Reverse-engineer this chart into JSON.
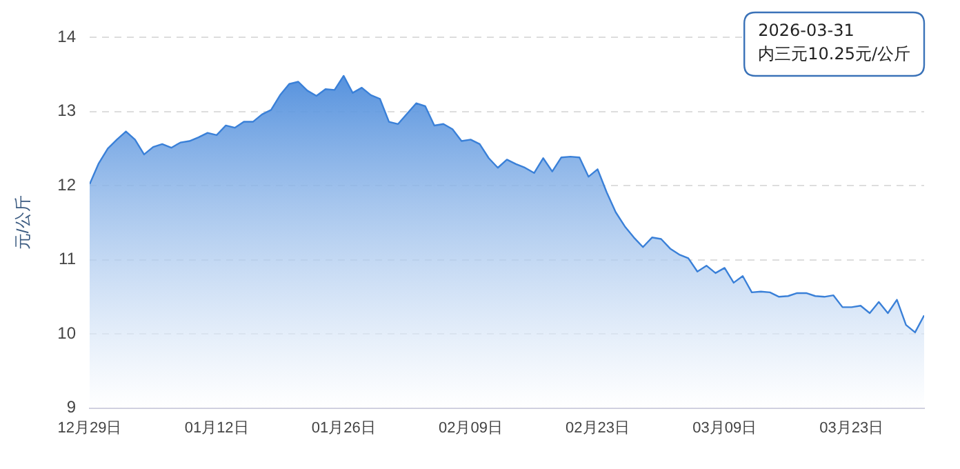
{
  "chart_data": {
    "type": "area",
    "ylabel": "元/公斤",
    "x": [
      "2025-12-29",
      "2025-12-30",
      "2025-12-31",
      "2026-01-01",
      "2026-01-02",
      "2026-01-03",
      "2026-01-04",
      "2026-01-05",
      "2026-01-06",
      "2026-01-07",
      "2026-01-08",
      "2026-01-09",
      "2026-01-10",
      "2026-01-11",
      "2026-01-12",
      "2026-01-13",
      "2026-01-14",
      "2026-01-15",
      "2026-01-16",
      "2026-01-17",
      "2026-01-18",
      "2026-01-19",
      "2026-01-20",
      "2026-01-21",
      "2026-01-22",
      "2026-01-23",
      "2026-01-24",
      "2026-01-25",
      "2026-01-26",
      "2026-01-27",
      "2026-01-28",
      "2026-01-29",
      "2026-01-30",
      "2026-01-31",
      "2026-02-01",
      "2026-02-02",
      "2026-02-03",
      "2026-02-04",
      "2026-02-05",
      "2026-02-06",
      "2026-02-07",
      "2026-02-08",
      "2026-02-09",
      "2026-02-10",
      "2026-02-11",
      "2026-02-12",
      "2026-02-13",
      "2026-02-14",
      "2026-02-15",
      "2026-02-16",
      "2026-02-17",
      "2026-02-18",
      "2026-02-19",
      "2026-02-20",
      "2026-02-21",
      "2026-02-22",
      "2026-02-23",
      "2026-02-24",
      "2026-02-25",
      "2026-02-26",
      "2026-02-27",
      "2026-02-28",
      "2026-03-01",
      "2026-03-02",
      "2026-03-03",
      "2026-03-04",
      "2026-03-05",
      "2026-03-06",
      "2026-03-07",
      "2026-03-08",
      "2026-03-09",
      "2026-03-10",
      "2026-03-11",
      "2026-03-12",
      "2026-03-13",
      "2026-03-14",
      "2026-03-15",
      "2026-03-16",
      "2026-03-17",
      "2026-03-18",
      "2026-03-19",
      "2026-03-20",
      "2026-03-21",
      "2026-03-22",
      "2026-03-23",
      "2026-03-24",
      "2026-03-25",
      "2026-03-26",
      "2026-03-27",
      "2026-03-28",
      "2026-03-29",
      "2026-03-30",
      "2026-03-31"
    ],
    "series": [
      {
        "color": "#3a80d8",
        "values": [
          12.02,
          12.3,
          12.5,
          12.62,
          12.73,
          12.62,
          12.42,
          12.52,
          12.56,
          12.51,
          12.58,
          12.6,
          12.65,
          12.71,
          12.68,
          12.81,
          12.78,
          12.86,
          12.86,
          12.96,
          13.02,
          13.22,
          13.37,
          13.4,
          13.28,
          13.21,
          13.3,
          13.29,
          13.48,
          13.25,
          13.32,
          13.22,
          13.17,
          12.86,
          12.83,
          12.97,
          13.11,
          13.07,
          12.81,
          12.83,
          12.76,
          12.6,
          12.62,
          12.56,
          12.37,
          12.24,
          12.35,
          12.29,
          12.24,
          12.17,
          12.37,
          12.19,
          12.38,
          12.39,
          12.38,
          12.12,
          12.22,
          11.91,
          11.64,
          11.45,
          11.3,
          11.17,
          11.3,
          11.28,
          11.15,
          11.07,
          11.02,
          10.84,
          10.92,
          10.82,
          10.89,
          10.69,
          10.78,
          10.56,
          10.57,
          10.56,
          10.5,
          10.51,
          10.55,
          10.55,
          10.51,
          10.5,
          10.52,
          10.36,
          10.36,
          10.38,
          10.28,
          10.43,
          10.28,
          10.46,
          10.12,
          10.02,
          10.25
        ]
      }
    ],
    "xlim": [
      "2025-12-29",
      "2026-03-31"
    ],
    "xticks": [
      {
        "value": "2025-12-29",
        "label": "12月29日"
      },
      {
        "value": "2026-01-12",
        "label": "01月12日"
      },
      {
        "value": "2026-01-26",
        "label": "01月26日"
      },
      {
        "value": "2026-02-09",
        "label": "02月09日"
      },
      {
        "value": "2026-02-23",
        "label": "02月23日"
      },
      {
        "value": "2026-03-09",
        "label": "03月09日"
      },
      {
        "value": "2026-03-23",
        "label": "03月23日"
      }
    ],
    "ylim": [
      9,
      14
    ],
    "yticks": [
      9,
      10,
      11,
      12,
      13,
      14
    ],
    "grid": "y",
    "legend": false,
    "marker": "none",
    "line_style": "solid",
    "annotations": [
      "2026-03-31\n内三元10.25元/公斤"
    ]
  }
}
